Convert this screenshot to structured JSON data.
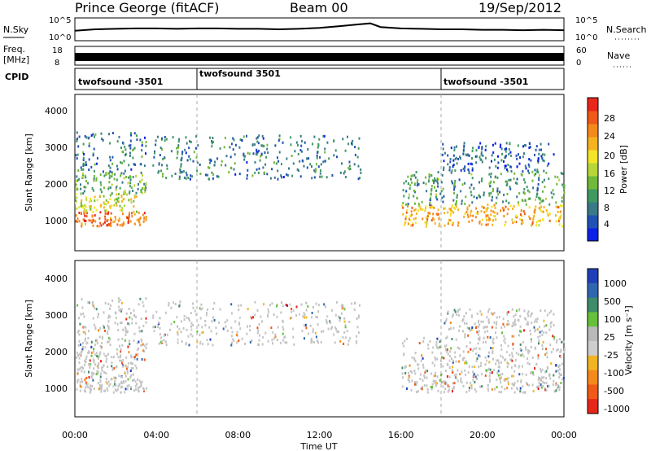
{
  "header": {
    "station": "Prince George (fitACF)",
    "beam": "Beam 00",
    "date": "19/Sep/2012"
  },
  "chart_data": [
    {
      "type": "line",
      "name": "noise-panel",
      "left_label": "N.Sky",
      "right_label": "N.Search",
      "left_ticks": [
        "10^5",
        "10^0"
      ],
      "right_ticks": [
        "10^5",
        "10^0"
      ],
      "x_range_hours": [
        0,
        24
      ],
      "series": [
        {
          "x": [
            0,
            1,
            2,
            3,
            4,
            5,
            6,
            7,
            8,
            9,
            10,
            11,
            12,
            13,
            14,
            14.5,
            15,
            16,
            17,
            18,
            19,
            20,
            21,
            22,
            23,
            24
          ],
          "y": [
            2.2,
            2.5,
            2.6,
            2.7,
            2.7,
            2.6,
            2.7,
            2.7,
            2.6,
            2.6,
            2.5,
            2.6,
            2.8,
            3.2,
            3.6,
            3.8,
            3.0,
            2.7,
            2.6,
            2.5,
            2.5,
            2.4,
            2.4,
            2.3,
            2.4,
            2.3
          ]
        }
      ]
    },
    {
      "type": "bar",
      "name": "frequency-panel",
      "left_label_1": "Freq.",
      "left_label_2": "[MHz]",
      "right_label": "Nave",
      "left_ticks": [
        "18",
        "8"
      ],
      "right_ticks": [
        "60",
        "0"
      ],
      "note": "dense frequency / nave bars throughout the day"
    },
    {
      "type": "table",
      "name": "cpid-panel",
      "label": "CPID",
      "segments": [
        {
          "start": 0,
          "end": 6,
          "text": "twofsound -3501"
        },
        {
          "start": 6,
          "end": 18,
          "text": "twofsound 3501"
        },
        {
          "start": 18,
          "end": 24,
          "text": "twofsound -3501"
        }
      ]
    },
    {
      "type": "heatmap",
      "name": "power-panel",
      "ylabel": "Slant Range [km]",
      "yticks": [
        1000,
        2000,
        3000,
        4000
      ],
      "ylim": [
        200,
        4500
      ],
      "x_range_hours": [
        0,
        24
      ],
      "colorbar": {
        "label": "Power [dB]",
        "ticks": [
          "4",
          "8",
          "12",
          "16",
          "20",
          "24",
          "28"
        ],
        "colors": [
          "#0b21e6",
          "#2151b4",
          "#3a7a88",
          "#3f9a62",
          "#70b93a",
          "#b7d638",
          "#f2e429",
          "#f6b321",
          "#f58a1c",
          "#ef5a18",
          "#e8261a"
        ]
      },
      "scatter_regions": [
        {
          "t0": 0.0,
          "t1": 3.5,
          "r0": 900,
          "r1": 1300,
          "level": 26
        },
        {
          "t0": 0.0,
          "t1": 3.0,
          "r0": 1300,
          "r1": 1800,
          "level": 18
        },
        {
          "t0": 0.0,
          "t1": 3.5,
          "r0": 1800,
          "r1": 2400,
          "level": 12
        },
        {
          "t0": 0.0,
          "t1": 3.5,
          "r0": 2400,
          "r1": 3500,
          "level": 8
        },
        {
          "t0": 3.8,
          "t1": 14.0,
          "r0": 2200,
          "r1": 3400,
          "level": 8
        },
        {
          "t0": 16.0,
          "t1": 24.0,
          "r0": 900,
          "r1": 1500,
          "level": 22
        },
        {
          "t0": 16.0,
          "t1": 24.0,
          "r0": 1500,
          "r1": 2400,
          "level": 10
        },
        {
          "t0": 18.0,
          "t1": 23.5,
          "r0": 2400,
          "r1": 3200,
          "level": 6
        }
      ]
    },
    {
      "type": "heatmap",
      "name": "velocity-panel",
      "ylabel": "Slant Range [km]",
      "xlabel": "Time UT",
      "yticks": [
        1000,
        2000,
        3000,
        4000
      ],
      "ylim": [
        200,
        4500
      ],
      "xticks": [
        "00:00",
        "04:00",
        "08:00",
        "12:00",
        "16:00",
        "20:00",
        "00:00"
      ],
      "x_range_hours": [
        0,
        24
      ],
      "colorbar": {
        "label": "Velocity [m s⁻¹]",
        "ticks": [
          "1000",
          "500",
          "100",
          "25",
          "-25",
          "-100",
          "-500",
          "-1000"
        ],
        "colors": [
          "#1f3fb8",
          "#2f66b0",
          "#3f8c6a",
          "#66c03a",
          "#b9b9b9",
          "#cdcdcd",
          "#f1b524",
          "#f58a1c",
          "#ef5a18",
          "#e8261a"
        ]
      },
      "ground_scatter_color": "#c4c4c4"
    }
  ]
}
